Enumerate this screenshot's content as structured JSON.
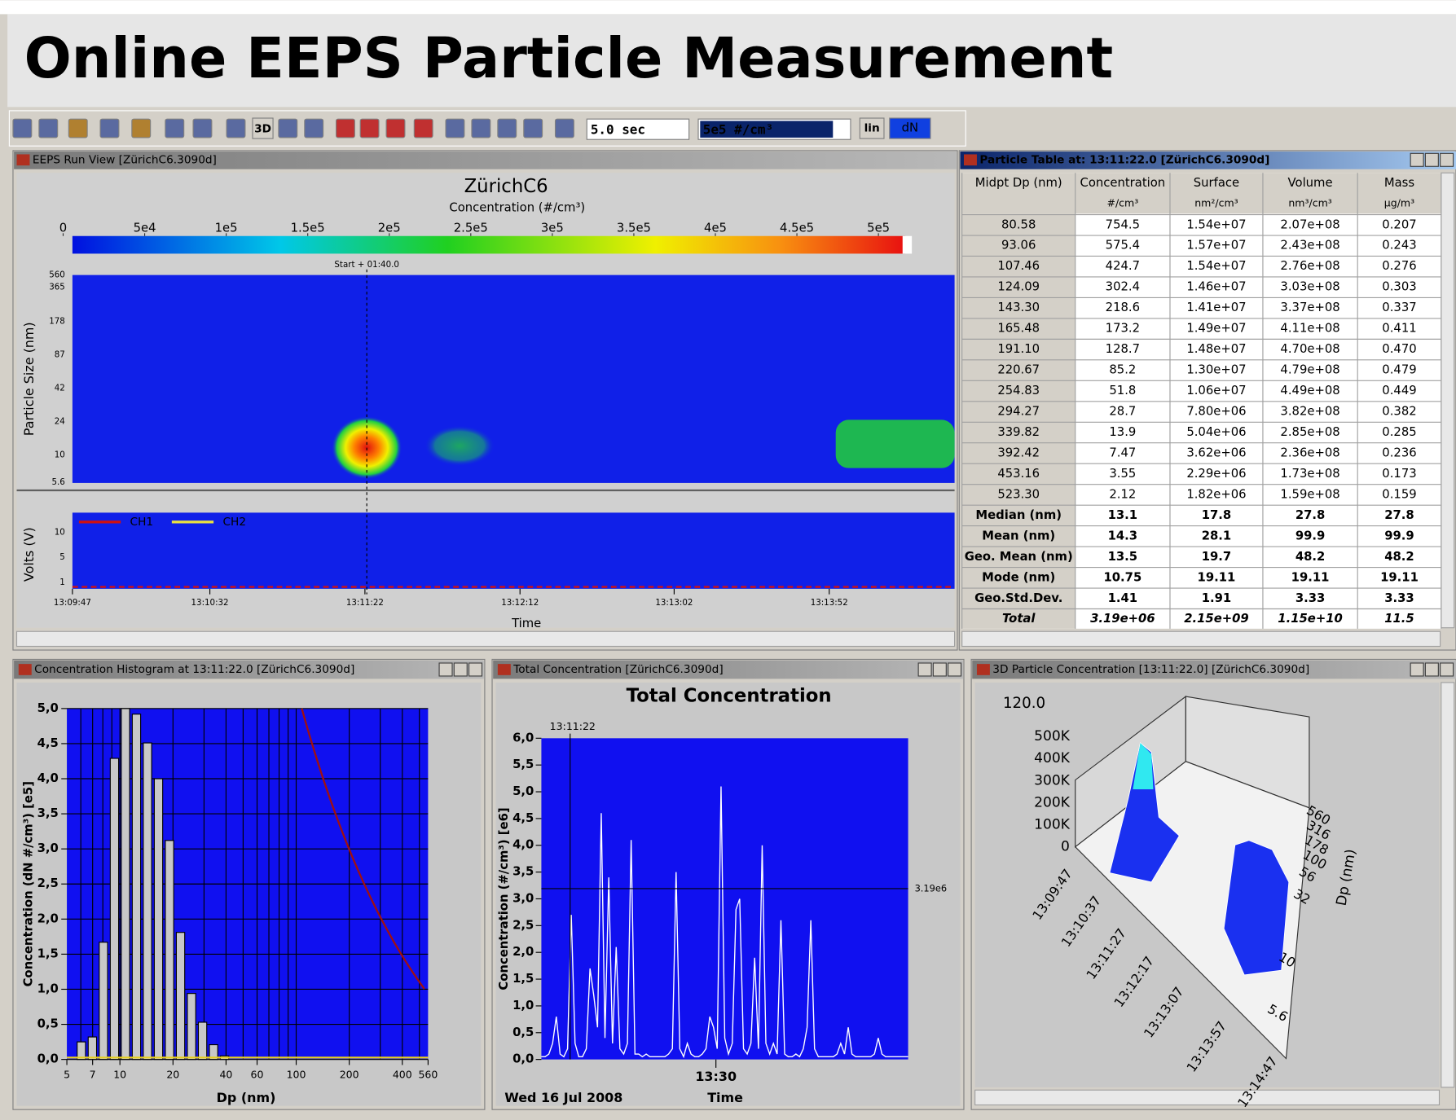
{
  "title": "Online EEPS Particle Measurement",
  "toolbar": {
    "mode_3d": "3D",
    "interval": "5.0 sec",
    "scale": "5e5 #/cm³",
    "lin": "lin",
    "dn": "dN"
  },
  "run_view": {
    "window_title": "EEPS Run View  [ZürichC6.3090d]",
    "chart_title": "ZürichC6",
    "colorbar_label": "Concentration (#/cm³)",
    "colorbar_lim": [
      0,
      500000
    ],
    "colorbar_ticks": [
      0,
      {
        "value": 50000,
        "label": "5e4"
      },
      {
        "value": 100000,
        "label": "1e5"
      },
      {
        "value": 150000,
        "label": "1.5e5"
      },
      {
        "value": 200000,
        "label": "2e5"
      },
      {
        "value": 250000,
        "label": "2.5e5"
      },
      {
        "value": 300000,
        "label": "3e5"
      },
      {
        "value": 350000,
        "label": "3.5e5"
      },
      {
        "value": 400000,
        "label": "4e5"
      },
      {
        "value": 450000,
        "label": "4.5e5"
      },
      {
        "value": 500000,
        "label": "5e5"
      }
    ],
    "cursor_label": "Start + 01:40.0",
    "y_label": "Particle Size (nm)",
    "y_ticks": [
      "560",
      "365",
      "178",
      "87",
      "42",
      "24",
      "10",
      "5.6"
    ],
    "volts_label": "Volts (V)",
    "volts_ticks": [
      "10",
      "5",
      "1"
    ],
    "legend": [
      {
        "name": "CH1",
        "color": "#d01010"
      },
      {
        "name": "CH2",
        "color": "#e8e040"
      }
    ],
    "x_ticks": [
      "13:09:47",
      "13:10:32",
      "13:11:22",
      "13:12:12",
      "13:13:02",
      "13:13:52"
    ],
    "x_label": "Time"
  },
  "particle_table": {
    "window_title": "Particle Table at: 13:11:22.0  [ZürichC6.3090d]",
    "columns": [
      "Midpt Dp (nm)",
      "Concentration",
      "Surface",
      "Volume",
      "Mass"
    ],
    "units": [
      "#/cm³",
      "nm²/cm³",
      "nm³/cm³",
      "µg/m³"
    ],
    "rows": [
      [
        "80.58",
        "754.5",
        "1.54e+07",
        "2.07e+08",
        "0.207"
      ],
      [
        "93.06",
        "575.4",
        "1.57e+07",
        "2.43e+08",
        "0.243"
      ],
      [
        "107.46",
        "424.7",
        "1.54e+07",
        "2.76e+08",
        "0.276"
      ],
      [
        "124.09",
        "302.4",
        "1.46e+07",
        "3.03e+08",
        "0.303"
      ],
      [
        "143.30",
        "218.6",
        "1.41e+07",
        "3.37e+08",
        "0.337"
      ],
      [
        "165.48",
        "173.2",
        "1.49e+07",
        "4.11e+08",
        "0.411"
      ],
      [
        "191.10",
        "128.7",
        "1.48e+07",
        "4.70e+08",
        "0.470"
      ],
      [
        "220.67",
        "85.2",
        "1.30e+07",
        "4.79e+08",
        "0.479"
      ],
      [
        "254.83",
        "51.8",
        "1.06e+07",
        "4.49e+08",
        "0.449"
      ],
      [
        "294.27",
        "28.7",
        "7.80e+06",
        "3.82e+08",
        "0.382"
      ],
      [
        "339.82",
        "13.9",
        "5.04e+06",
        "2.85e+08",
        "0.285"
      ],
      [
        "392.42",
        "7.47",
        "3.62e+06",
        "2.36e+08",
        "0.236"
      ],
      [
        "453.16",
        "3.55",
        "2.29e+06",
        "1.73e+08",
        "0.173"
      ],
      [
        "523.30",
        "2.12",
        "1.82e+06",
        "1.59e+08",
        "0.159"
      ]
    ],
    "stats": [
      [
        "Median (nm)",
        "13.1",
        "17.8",
        "27.8",
        "27.8"
      ],
      [
        "Mean (nm)",
        "14.3",
        "28.1",
        "99.9",
        "99.9"
      ],
      [
        "Geo. Mean (nm)",
        "13.5",
        "19.7",
        "48.2",
        "48.2"
      ],
      [
        "Mode (nm)",
        "10.75",
        "19.11",
        "19.11",
        "19.11"
      ],
      [
        "Geo.Std.Dev.",
        "1.41",
        "1.91",
        "3.33",
        "3.33"
      ],
      [
        "Total",
        "3.19e+06",
        "2.15e+09",
        "1.15e+10",
        "11.5"
      ]
    ]
  },
  "histogram": {
    "window_title": "Concentration Histogram at 13:11:22.0  [ZürichC6.3090d]",
    "type": "bar",
    "x_label": "Dp (nm)",
    "y_label": "Concentration (dN #/cm³) [e5]",
    "x": [
      6.04,
      6.98,
      8.06,
      9.31,
      10.75,
      12.41,
      14.33,
      16.55,
      19.11,
      22.07,
      25.48,
      29.43,
      33.98,
      39.24
    ],
    "values": [
      0.25,
      0.32,
      1.67,
      4.29,
      5.0,
      4.92,
      4.51,
      4.0,
      3.12,
      1.81,
      0.94,
      0.53,
      0.21,
      0.05
    ],
    "color": "#c8c8c8",
    "xlim": [
      5,
      560
    ],
    "xlog": true,
    "xticks": [
      5,
      7,
      10,
      20,
      40,
      60,
      100,
      200,
      400,
      560
    ],
    "ylim": [
      0,
      5
    ],
    "yticks": [
      {
        "value": 0,
        "label": "0,0"
      },
      {
        "value": 0.5,
        "label": "0,5"
      },
      {
        "value": 1,
        "label": "1,0"
      },
      {
        "value": 1.5,
        "label": "1,5"
      },
      {
        "value": 2,
        "label": "2,0"
      },
      {
        "value": 2.5,
        "label": "2,5"
      },
      {
        "value": 3,
        "label": "3,0"
      },
      {
        "value": 3.5,
        "label": "3,5"
      },
      {
        "value": 4,
        "label": "4,0"
      },
      {
        "value": 4.5,
        "label": "4,5"
      },
      {
        "value": 5,
        "label": "5,0"
      }
    ],
    "grid": true
  },
  "total_concentration": {
    "window_title": "Total Concentration  [ZürichC6.3090d]",
    "type": "line",
    "chart_title": "Total Concentration",
    "cursor_label": "13:11:22",
    "y_label": "Concentration (#/cm³) [e6]",
    "x_tick": "13:30",
    "date": "Wed 16 Jul 2008",
    "x_label": "Time",
    "reference": {
      "value": 3.19,
      "label": "3.19e6"
    },
    "color": "#ffffff",
    "values": [
      0.05,
      0.05,
      0.1,
      0.3,
      0.8,
      0.1,
      0.05,
      0.2,
      2.7,
      0.3,
      0.05,
      0.05,
      0.2,
      1.7,
      1.2,
      0.6,
      4.6,
      0.4,
      3.4,
      0.3,
      2.1,
      0.2,
      0.1,
      0.3,
      4.1,
      0.1,
      0.1,
      0.05,
      0.1,
      0.05,
      0.05,
      0.05,
      0.05,
      0.05,
      0.1,
      0.2,
      3.5,
      0.2,
      0.05,
      0.3,
      0.1,
      0.05,
      0.05,
      0.1,
      0.2,
      0.8,
      0.6,
      0.2,
      5.1,
      0.4,
      0.1,
      0.3,
      2.8,
      3.0,
      0.2,
      0.1,
      0.3,
      1.9,
      0.2,
      4.0,
      0.3,
      0.1,
      0.3,
      0.1,
      2.6,
      0.1,
      0.05,
      0.05,
      0.1,
      0.05,
      0.2,
      0.6,
      2.6,
      0.2,
      0.05,
      0.05,
      0.05,
      0.05,
      0.05,
      0.1,
      0.3,
      0.1,
      0.6,
      0.1,
      0.05,
      0.05,
      0.05,
      0.05,
      0.05,
      0.1,
      0.4,
      0.1,
      0.05,
      0.05,
      0.05,
      0.05,
      0.05,
      0.05,
      0.05
    ],
    "ylim": [
      0,
      6
    ],
    "yticks": [
      {
        "value": 0,
        "label": "0,0"
      },
      {
        "value": 0.5,
        "label": "0,5"
      },
      {
        "value": 1,
        "label": "1,0"
      },
      {
        "value": 1.5,
        "label": "1,5"
      },
      {
        "value": 2,
        "label": "2,0"
      },
      {
        "value": 2.5,
        "label": "2,5"
      },
      {
        "value": 3,
        "label": "3,0"
      },
      {
        "value": 3.5,
        "label": "3,5"
      },
      {
        "value": 4,
        "label": "4,0"
      },
      {
        "value": 4.5,
        "label": "4,5"
      },
      {
        "value": 5,
        "label": "5,0"
      },
      {
        "value": 5.5,
        "label": "5,5"
      },
      {
        "value": 6,
        "label": "6,0"
      }
    ]
  },
  "particle_3d": {
    "window_title": "3D Particle Concentration [13:11:22.0]  [ZürichC6.3090d]",
    "top_label": "120.0",
    "z_ticks": [
      "500K",
      "400K",
      "300K",
      "200K",
      "100K",
      "0"
    ],
    "time_ticks": [
      "13:09:47",
      "13:10:37",
      "13:11:27",
      "13:12:17",
      "13:13:07",
      "13:13:57",
      "13:14:47"
    ],
    "dp_ticks": [
      "560",
      "316",
      "178",
      "100",
      "56",
      "32",
      "10",
      "5.6"
    ],
    "dp_label": "Dp (nm)"
  }
}
